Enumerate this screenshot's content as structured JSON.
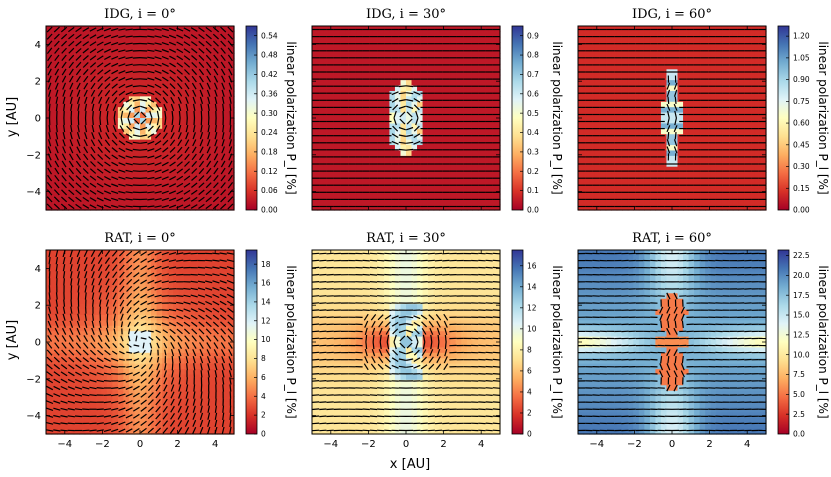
{
  "chart_data": [
    {
      "type": "heatmap",
      "model": "IDG",
      "inclination": "0°",
      "title": "IDG, i = 0°",
      "pattern": "ring",
      "cbar": {
        "label": "linear polarization P_l [%]",
        "min": 0.0,
        "max": 0.57,
        "ticks": [
          "0.00",
          "0.06",
          "0.12",
          "0.18",
          "0.24",
          "0.30",
          "0.36",
          "0.42",
          "0.48",
          "0.54"
        ]
      }
    },
    {
      "type": "heatmap",
      "model": "IDG",
      "inclination": "30°",
      "title": "IDG, i = 30°",
      "pattern": "ring_incl",
      "cbar": {
        "label": "linear polarization P_l [%]",
        "min": 0.0,
        "max": 0.95,
        "ticks": [
          "0.0",
          "0.1",
          "0.2",
          "0.3",
          "0.4",
          "0.5",
          "0.6",
          "0.7",
          "0.8",
          "0.9"
        ]
      }
    },
    {
      "type": "heatmap",
      "model": "IDG",
      "inclination": "60°",
      "title": "IDG, i = 60°",
      "pattern": "ring_incl2",
      "cbar": {
        "label": "linear polarization P_l [%]",
        "min": 0.0,
        "max": 1.27,
        "ticks": [
          "0.00",
          "0.15",
          "0.30",
          "0.45",
          "0.60",
          "0.75",
          "0.90",
          "1.05",
          "1.20"
        ]
      }
    },
    {
      "type": "heatmap",
      "model": "RAT",
      "inclination": "0°",
      "title": "RAT, i = 0°",
      "pattern": "rat0",
      "cbar": {
        "label": "linear polarization P_l [%]",
        "min": 0,
        "max": 19.5,
        "ticks": [
          "0",
          "2",
          "4",
          "6",
          "8",
          "10",
          "12",
          "14",
          "16",
          "18"
        ]
      }
    },
    {
      "type": "heatmap",
      "model": "RAT",
      "inclination": "30°",
      "title": "RAT, i = 30°",
      "pattern": "rat30",
      "cbar": {
        "label": "linear polarization P_l [%]",
        "min": 0,
        "max": 17.5,
        "ticks": [
          "0",
          "2",
          "4",
          "6",
          "8",
          "10",
          "12",
          "14",
          "16"
        ]
      }
    },
    {
      "type": "heatmap",
      "model": "RAT",
      "inclination": "60°",
      "title": "RAT, i = 60°",
      "pattern": "rat60",
      "cbar": {
        "label": "linear polarization P_l [%]",
        "min": 0,
        "max": 23.2,
        "ticks": [
          "0.0",
          "2.5",
          "5.0",
          "7.5",
          "10.0",
          "12.5",
          "15.0",
          "17.5",
          "20.0",
          "22.5"
        ]
      }
    }
  ],
  "axes": {
    "xlabel": "x [AU]",
    "ylabel": "y [AU]",
    "xlim": [
      -5,
      5
    ],
    "ylim": [
      -5,
      5
    ],
    "xticks": [
      "−4",
      "−2",
      "0",
      "2",
      "4"
    ],
    "yticks": [
      "4",
      "2",
      "0",
      "−2",
      "−4"
    ]
  },
  "colors": {
    "colormap": [
      "#a50026",
      "#d73027",
      "#f46d43",
      "#fdae61",
      "#fee090",
      "#ffffbf",
      "#e0f3f8",
      "#abd9e9",
      "#74add1",
      "#4575b4",
      "#313695"
    ]
  }
}
